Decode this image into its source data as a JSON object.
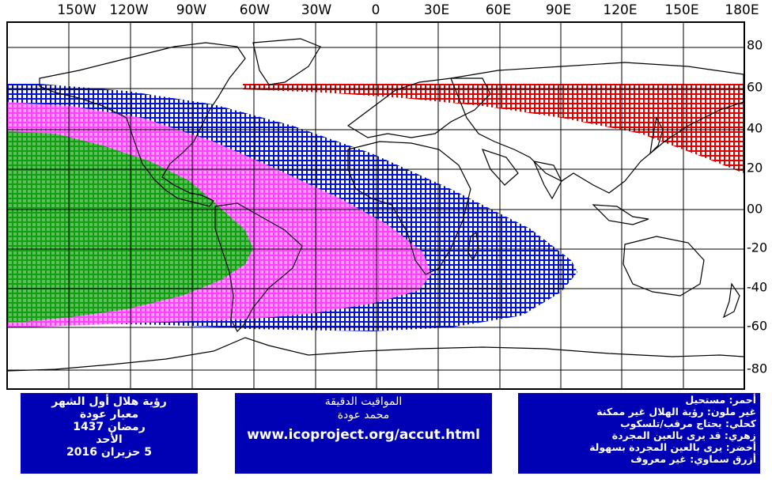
{
  "map": {
    "lon_labels": [
      "150W",
      "120W",
      "90W",
      "60W",
      "30W",
      "0",
      "30E",
      "60E",
      "90E",
      "120E",
      "150E",
      "180E"
    ],
    "lat_labels": [
      "80",
      "60",
      "40",
      "20",
      "00",
      "-20",
      "-40",
      "-60",
      "-80"
    ],
    "colors": {
      "red": "#e00000",
      "blue": "#0010dd",
      "magenta": "#ff40ff",
      "green": "#10a010",
      "grid": "#000000",
      "coast": "#000000"
    },
    "zones": [
      "red",
      "blue",
      "magenta",
      "green"
    ]
  },
  "left_box": {
    "lines": [
      "رؤية هلال أول الشهر",
      "معيار عودة",
      "رمضان 1437",
      "الأحد",
      "5 حزيران 2016"
    ]
  },
  "center_box": {
    "lines": [
      "المواقيت الدقيقة",
      "محمد عودة"
    ],
    "url": "www.icoproject.org/accut.html"
  },
  "right_box": {
    "lines": [
      "أحمر: مستحيل",
      "غير ملون: رؤية الهلال غير ممكنة",
      "كحلي: يحتاج مرقب/تلسكوب",
      "زهري: قد يرى بالعين المجردة",
      "أخضر: يرى بالعين المجردة بسهولة",
      "أزرق سماوي: غير معروف"
    ]
  }
}
